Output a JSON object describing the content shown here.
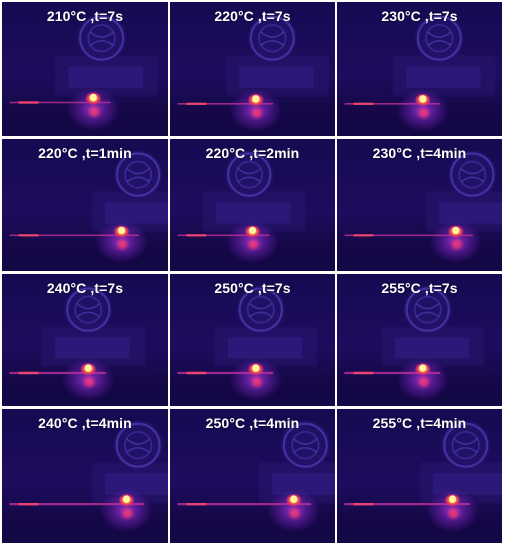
{
  "figure": {
    "panels": [
      {
        "label": "210°C ,t=7s"
      },
      {
        "label": "220°C ,t=7s"
      },
      {
        "label": "230°C ,t=7s"
      },
      {
        "label": "220°C ,t=1min"
      },
      {
        "label": "220°C ,t=2min"
      },
      {
        "label": "230°C ,t=4min"
      },
      {
        "label": "240°C ,t=7s"
      },
      {
        "label": "250°C ,t=7s"
      },
      {
        "label": "255°C ,t=7s"
      },
      {
        "label": "240°C ,t=4min"
      },
      {
        "label": "250°C ,t=4min"
      },
      {
        "label": "255°C ,t=4min"
      }
    ]
  },
  "colors": {
    "background": "#1a0a4a",
    "deep": "#0d0630",
    "hot_core": "#fff4a0",
    "hot_mid": "#ff9a2a",
    "hot_outer": "#e0306a",
    "glow": "#8a2ad0",
    "trace": "#c0309a"
  }
}
